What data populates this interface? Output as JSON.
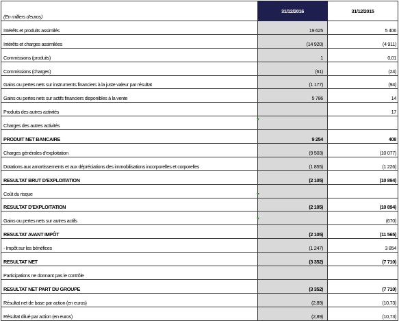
{
  "header": {
    "unit_label": "(En milliers d'euros)",
    "col_2016": "31/12/2016",
    "col_2015": "31/12/2015"
  },
  "rows": [
    {
      "label": "Intérêts et produits assimilés",
      "v2016": "19 625",
      "v2015": "5 406",
      "bold": false
    },
    {
      "label": "Intérêts et charges assimilées",
      "v2016": "(14 920)",
      "v2015": "(4 911)",
      "bold": false
    },
    {
      "label": "Commissions (produits)",
      "v2016": "1",
      "v2015": "0,01",
      "bold": false
    },
    {
      "label": "Commissions (charges)",
      "v2016": "(61)",
      "v2015": "(24)",
      "bold": false
    },
    {
      "label": "Gains ou pertes nets sur instruments financiers à la juste valeur par résultat",
      "v2016": "(1 177)",
      "v2015": "(94)",
      "bold": false
    },
    {
      "label": "Gains ou pertes nets sur actifs financiers disponibles à la vente",
      "v2016": "5 786",
      "v2015": "14",
      "bold": false
    },
    {
      "label": "Produits des autres activités",
      "v2016": "",
      "v2015": "17",
      "bold": false
    },
    {
      "label": "Charges des autres activités",
      "v2016": "",
      "v2015": "",
      "bold": false
    },
    {
      "label": "PRODUIT NET BANCAIRE",
      "v2016": "9 254",
      "v2015": "408",
      "bold": true
    },
    {
      "label": "Charges générales d'exploitation",
      "v2016": "(9 503)",
      "v2015": "(10 077)",
      "bold": false
    },
    {
      "label": "Dotations aux amortissements et aux dépréciations des immobilisations incorporelles et corporelles",
      "v2016": "(1 855)",
      "v2015": "(1 226)",
      "bold": false
    },
    {
      "label": "RESULTAT BRUT D'EXPLOITATION",
      "v2016": "(2 105)",
      "v2015": "(10 894)",
      "bold": true
    },
    {
      "label": "Coût du risque",
      "v2016": "",
      "v2015": "",
      "bold": false
    },
    {
      "label": "RESULTAT D'EXPLOITATION",
      "v2016": "(2 105)",
      "v2015": "(10 894)",
      "bold": true
    },
    {
      "label": "Gains ou pertes nets sur autres actifs",
      "v2016": "",
      "v2015": "(670)",
      "bold": false
    },
    {
      "label": "RESULTAT AVANT IMPÔT",
      "v2016": "(2 105)",
      "v2015": "(11 565)",
      "bold": true
    },
    {
      "label": "- Impôt sur les bénéfices",
      "v2016": "(1 247)",
      "v2015": "3 854",
      "bold": false
    },
    {
      "label": "RESULTAT NET",
      "v2016": "(3 352)",
      "v2015": "(7 710)",
      "bold": true
    },
    {
      "label": "Participations ne donnant pas le contrôle",
      "v2016": "",
      "v2015": "",
      "bold": false
    },
    {
      "label": "RESULTAT NET PART DU GROUPE",
      "v2016": "(3 352)",
      "v2015": "(7 710)",
      "bold": true
    },
    {
      "label": "Résultat net de base par action (en euros)",
      "v2016": "(2,89)",
      "v2015": "(10,73)",
      "bold": false
    },
    {
      "label": "Résultat dilué par action (en euros)",
      "v2016": "(2,89)",
      "v2015": "(10,73)",
      "bold": false
    }
  ],
  "colors": {
    "header_2016_bg": "#1f1f4f",
    "column_2016_bg": "#d9d9d9",
    "cell_marker": "#2e8b2e"
  }
}
